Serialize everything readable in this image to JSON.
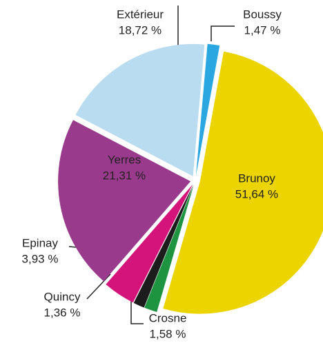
{
  "chart_data": {
    "type": "pie",
    "categories": [
      "Boussy",
      "Brunoy",
      "Crosne",
      "Quincy",
      "Epinay",
      "Yerres",
      "Extérieur"
    ],
    "values": [
      1.47,
      51.64,
      1.58,
      1.36,
      3.93,
      21.31,
      18.72
    ],
    "value_labels": [
      "1,47 %",
      "51,64 %",
      "1,58 %",
      "1,36 %",
      "3,93 %",
      "21,31 %",
      "18,72 %"
    ],
    "colors": [
      "#2aa6e0",
      "#ecd400",
      "#1e9440",
      "#1c1c1c",
      "#d4147a",
      "#9a3a8c",
      "#b9dcf0"
    ]
  }
}
